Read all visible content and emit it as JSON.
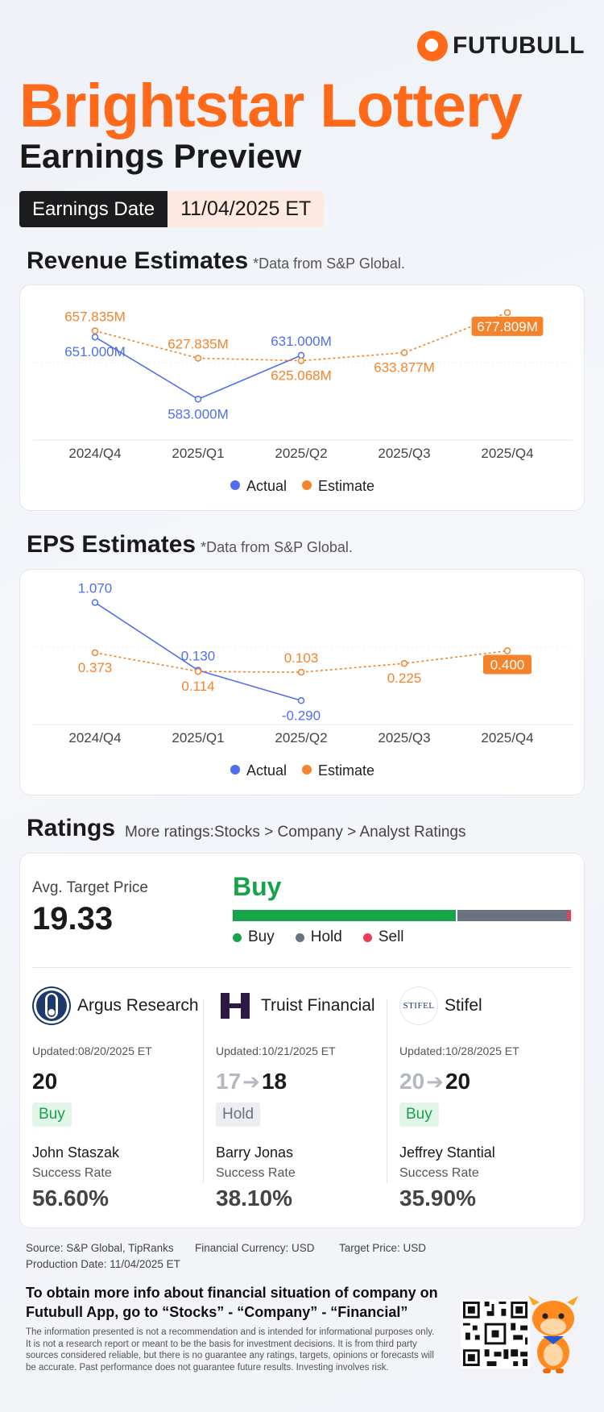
{
  "brand": {
    "name": "FUTUBULL"
  },
  "header": {
    "company": "Brightstar Lottery",
    "subtitle": "Earnings Preview",
    "earnings_date_label": "Earnings Date",
    "earnings_date_value": "11/04/2025 ET"
  },
  "revenue": {
    "title": "Revenue Estimates",
    "note": "*Data from S&P Global.",
    "legend_actual": "Actual",
    "legend_estimate": "Estimate"
  },
  "eps": {
    "title": "EPS Estimates",
    "note": "*Data from S&P Global.",
    "legend_actual": "Actual",
    "legend_estimate": "Estimate"
  },
  "chart_data": [
    {
      "type": "line",
      "title": "Revenue Estimates",
      "categories": [
        "2024/Q4",
        "2025/Q1",
        "2025/Q2",
        "2025/Q3",
        "2025/Q4"
      ],
      "series": [
        {
          "name": "Actual",
          "values": [
            651.0,
            583.0,
            631.0,
            null,
            null
          ],
          "labels": [
            "651.000M",
            "583.000M",
            "631.000M",
            "",
            ""
          ]
        },
        {
          "name": "Estimate",
          "values": [
            657.835,
            627.835,
            625.068,
            633.877,
            677.809
          ],
          "labels": [
            "657.835M",
            "627.835M",
            "625.068M",
            "633.877M",
            "677.809M"
          ]
        }
      ],
      "ylim": [
        540,
        690
      ],
      "colors": {
        "actual": "#4f6ff0",
        "estimate": "#f5832b"
      }
    },
    {
      "type": "line",
      "title": "EPS Estimates",
      "categories": [
        "2024/Q4",
        "2025/Q1",
        "2025/Q2",
        "2025/Q3",
        "2025/Q4"
      ],
      "series": [
        {
          "name": "Actual",
          "values": [
            1.07,
            0.13,
            -0.29,
            null,
            null
          ],
          "labels": [
            "1.070",
            "0.130",
            "-0.290",
            "",
            ""
          ]
        },
        {
          "name": "Estimate",
          "values": [
            0.373,
            0.114,
            0.103,
            0.225,
            0.4
          ],
          "labels": [
            "0.373",
            "0.114",
            "0.103",
            "0.225",
            "0.400"
          ]
        }
      ],
      "ylim": [
        -0.6,
        1.3
      ],
      "colors": {
        "actual": "#4f6ff0",
        "estimate": "#f5832b"
      }
    }
  ],
  "ratings": {
    "title": "Ratings",
    "more": "More ratings:Stocks > Company > Analyst Ratings",
    "avg_label": "Avg. Target Price",
    "avg_value": "19.33",
    "consensus": "Buy",
    "distribution": {
      "buy": 0.66,
      "hold": 0.33,
      "sell": 0.01
    },
    "legend": [
      "Buy",
      "Hold",
      "Sell"
    ],
    "colors": {
      "buy": "#16a34a",
      "hold": "#6b7280",
      "sell": "#ef3b5a"
    },
    "analysts": [
      {
        "firm": "Argus Research",
        "updated": "Updated:08/20/2025 ET",
        "old": "",
        "new": "20",
        "rating": "Buy",
        "person": "John Staszak",
        "sr_label": "Success Rate",
        "success_rate": "56.60%"
      },
      {
        "firm": "Truist Financial",
        "updated": "Updated:10/21/2025 ET",
        "old": "17",
        "new": "18",
        "rating": "Hold",
        "person": "Barry Jonas",
        "sr_label": "Success Rate",
        "success_rate": "38.10%"
      },
      {
        "firm": "Stifel",
        "updated": "Updated:10/28/2025 ET",
        "old": "20",
        "new": "20",
        "rating": "Buy",
        "person": "Jeffrey Stantial",
        "sr_label": "Success Rate",
        "success_rate": "35.90%",
        "logo_text": "STIFEL"
      }
    ]
  },
  "footer": {
    "source": "Source: S&P Global, TipRanks",
    "currency": "Financial Currency: USD",
    "target": "Target Price: USD",
    "production": "Production Date: 11/04/2025 ET",
    "cta": "To obtain more info about financial situation of company on Futubull App, go to “Stocks” - “Company” - “Financial”",
    "disclaimer": "The information presented is not a recommendation and is intended for informational purposes only. It is not a research report or meant to be the basis for investment decisions. It is from third party sources considered reliable, but there is no guarantee any ratings, targets, opinions or forecasts will be accurate. Past performance does not guarantee future results. Investing involves risk."
  }
}
